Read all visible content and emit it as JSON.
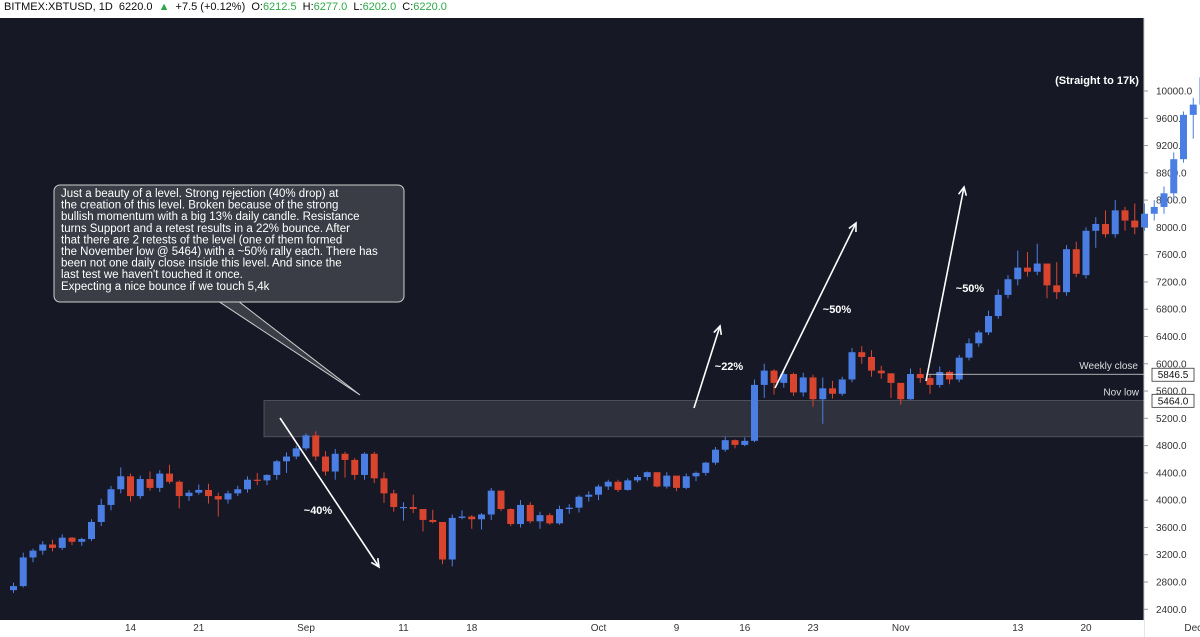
{
  "header": {
    "symbol": "BITMEX:XBTUSD, 1D",
    "last": "6220.0",
    "change_arrow": "▲",
    "change": "+7.5 (+0.12%)",
    "o_label": "O:",
    "o_value": "6212.5",
    "h_label": "H:",
    "h_value": "6277.0",
    "l_label": "L:",
    "l_value": "6202.0",
    "c_label": "C:",
    "c_value": "6220.0"
  },
  "colors": {
    "background": "#161826",
    "up": "#4a7ee3",
    "down": "#d8442e",
    "zone": "#2f313c",
    "text": "#ffffff",
    "axis_text": "#c8c8c8"
  },
  "chart_data": {
    "type": "candlestick",
    "symbol": "BITMEX:XBTUSD",
    "timeframe": "1D",
    "ylim": [
      2400,
      10400
    ],
    "y_ticks": [
      "10000.0",
      "9600.0",
      "9200.0",
      "8800.0",
      "8400.0",
      "8000.0",
      "7600.0",
      "7200.0",
      "6800.0",
      "6400.0",
      "6000.0",
      "5600.0",
      "5200.0",
      "4800.0",
      "4400.0",
      "4000.0",
      "3600.0",
      "3200.0",
      "2800.0",
      "2400.0"
    ],
    "x_ticks": [
      {
        "label": "14",
        "i": 12
      },
      {
        "label": "21",
        "i": 19
      },
      {
        "label": "Sep",
        "i": 30
      },
      {
        "label": "11",
        "i": 40
      },
      {
        "label": "18",
        "i": 47
      },
      {
        "label": "Oct",
        "i": 60
      },
      {
        "label": "9",
        "i": 68
      },
      {
        "label": "16",
        "i": 75
      },
      {
        "label": "23",
        "i": 82
      },
      {
        "label": "Nov",
        "i": 91
      },
      {
        "label": "13",
        "i": 103
      },
      {
        "label": "20",
        "i": 110
      },
      {
        "label": "Dec",
        "i": 121
      }
    ],
    "candles": [
      [
        2680,
        2790,
        2640,
        2740
      ],
      [
        2740,
        3230,
        2720,
        3160
      ],
      [
        3160,
        3290,
        3090,
        3260
      ],
      [
        3260,
        3400,
        3200,
        3350
      ],
      [
        3350,
        3420,
        3250,
        3300
      ],
      [
        3300,
        3500,
        3270,
        3450
      ],
      [
        3450,
        3460,
        3340,
        3390
      ],
      [
        3390,
        3450,
        3330,
        3430
      ],
      [
        3430,
        3720,
        3400,
        3680
      ],
      [
        3680,
        4020,
        3620,
        3930
      ],
      [
        3930,
        4210,
        3850,
        4160
      ],
      [
        4160,
        4480,
        4100,
        4350
      ],
      [
        4350,
        4390,
        3980,
        4060
      ],
      [
        4060,
        4360,
        4020,
        4310
      ],
      [
        4310,
        4420,
        4140,
        4180
      ],
      [
        4180,
        4440,
        4120,
        4390
      ],
      [
        4390,
        4520,
        4240,
        4270
      ],
      [
        4270,
        4290,
        3880,
        4060
      ],
      [
        4060,
        4150,
        3990,
        4110
      ],
      [
        4110,
        4230,
        4080,
        4150
      ],
      [
        4150,
        4240,
        3950,
        4060
      ],
      [
        4060,
        4110,
        3760,
        4010
      ],
      [
        4010,
        4140,
        3950,
        4100
      ],
      [
        4100,
        4210,
        4060,
        4160
      ],
      [
        4160,
        4350,
        4110,
        4300
      ],
      [
        4300,
        4400,
        4220,
        4290
      ],
      [
        4290,
        4380,
        4220,
        4370
      ],
      [
        4370,
        4590,
        4300,
        4570
      ],
      [
        4570,
        4700,
        4400,
        4640
      ],
      [
        4640,
        4800,
        4600,
        4760
      ],
      [
        4760,
        4980,
        4730,
        4950
      ],
      [
        4950,
        5010,
        4580,
        4640
      ],
      [
        4640,
        4720,
        4360,
        4420
      ],
      [
        4420,
        4750,
        4300,
        4680
      ],
      [
        4680,
        4710,
        4330,
        4590
      ],
      [
        4590,
        4620,
        4300,
        4370
      ],
      [
        4370,
        4700,
        4300,
        4680
      ],
      [
        4680,
        4710,
        4250,
        4320
      ],
      [
        4320,
        4410,
        3960,
        4100
      ],
      [
        4100,
        4150,
        3830,
        3900
      ],
      [
        3900,
        3970,
        3700,
        3900
      ],
      [
        3900,
        4080,
        3810,
        3870
      ],
      [
        3870,
        3870,
        3540,
        3710
      ],
      [
        3710,
        3860,
        3660,
        3680
      ],
      [
        3680,
        3680,
        3060,
        3130
      ],
      [
        3130,
        3790,
        3030,
        3740
      ],
      [
        3740,
        3850,
        3720,
        3760
      ],
      [
        3760,
        3780,
        3580,
        3720
      ],
      [
        3720,
        3810,
        3570,
        3790
      ],
      [
        3790,
        4180,
        3710,
        4140
      ],
      [
        4140,
        4120,
        3840,
        3870
      ],
      [
        3870,
        3880,
        3620,
        3650
      ],
      [
        3650,
        4000,
        3600,
        3930
      ],
      [
        3930,
        3970,
        3660,
        3690
      ],
      [
        3690,
        3830,
        3580,
        3780
      ],
      [
        3780,
        3810,
        3640,
        3660
      ],
      [
        3660,
        3920,
        3640,
        3870
      ],
      [
        3870,
        3940,
        3800,
        3890
      ],
      [
        3890,
        4070,
        3820,
        4050
      ],
      [
        4050,
        4130,
        3980,
        4080
      ],
      [
        4080,
        4230,
        4000,
        4200
      ],
      [
        4200,
        4300,
        4150,
        4270
      ],
      [
        4270,
        4300,
        4120,
        4150
      ],
      [
        4150,
        4320,
        4140,
        4290
      ],
      [
        4290,
        4370,
        4260,
        4340
      ],
      [
        4340,
        4420,
        4290,
        4410
      ],
      [
        4410,
        4360,
        4190,
        4200
      ],
      [
        4200,
        4410,
        4170,
        4360
      ],
      [
        4360,
        4300,
        4130,
        4180
      ],
      [
        4180,
        4390,
        4160,
        4350
      ],
      [
        4350,
        4420,
        4280,
        4400
      ],
      [
        4400,
        4560,
        4360,
        4550
      ],
      [
        4550,
        4780,
        4520,
        4740
      ],
      [
        4740,
        4930,
        4710,
        4880
      ],
      [
        4880,
        4890,
        4760,
        4810
      ],
      [
        4810,
        4920,
        4790,
        4870
      ],
      [
        4870,
        5770,
        4850,
        5690
      ],
      [
        5690,
        6000,
        5500,
        5900
      ],
      [
        5900,
        5920,
        5550,
        5720
      ],
      [
        5720,
        5890,
        5650,
        5850
      ],
      [
        5850,
        5870,
        5530,
        5580
      ],
      [
        5580,
        5870,
        5520,
        5800
      ],
      [
        5800,
        5840,
        5370,
        5480
      ],
      [
        5480,
        5800,
        5120,
        5640
      ],
      [
        5640,
        5750,
        5490,
        5560
      ],
      [
        5560,
        5810,
        5530,
        5770
      ],
      [
        5770,
        6230,
        5730,
        6170
      ],
      [
        6170,
        6260,
        6000,
        6100
      ],
      [
        6100,
        6200,
        5810,
        5900
      ],
      [
        5900,
        5970,
        5780,
        5860
      ],
      [
        5860,
        5860,
        5500,
        5720
      ],
      [
        5720,
        5700,
        5400,
        5480
      ],
      [
        5480,
        5930,
        5470,
        5850
      ],
      [
        5850,
        5940,
        5720,
        5790
      ],
      [
        5790,
        5840,
        5560,
        5690
      ],
      [
        5690,
        5960,
        5650,
        5880
      ],
      [
        5880,
        5900,
        5700,
        5770
      ],
      [
        5770,
        6130,
        5730,
        6090
      ],
      [
        6090,
        6370,
        6050,
        6300
      ],
      [
        6300,
        6490,
        6250,
        6460
      ],
      [
        6460,
        6780,
        6420,
        6700
      ],
      [
        6700,
        7090,
        6660,
        7010
      ],
      [
        7010,
        7300,
        6960,
        7240
      ],
      [
        7240,
        7660,
        7150,
        7410
      ],
      [
        7410,
        7640,
        7280,
        7350
      ],
      [
        7350,
        7760,
        7300,
        7470
      ],
      [
        7470,
        7450,
        6960,
        7150
      ],
      [
        7150,
        7490,
        6950,
        7050
      ],
      [
        7050,
        7740,
        7000,
        7680
      ],
      [
        7680,
        7790,
        7270,
        7320
      ]
    ]
  },
  "zone": {
    "low": 4930,
    "high": 5460
  },
  "annotations": {
    "note_text": "Just a beauty of a level. Strong rejection (40% drop) at the creation of this level. Broken because of the strong bullish momentum with a big 13% daily candle. Resistance turns Support and a retest results in a 22% bounce. After that there are 2 retests of the level (one of them formed the November low @ 5464) with a ~50% rally each. There has been not one daily close inside this level. And since the last test we haven't touched it once.",
    "note_text_last": "Expecting a nice bounce if we touch 5,4k",
    "drop_label": "~40%",
    "bounce_label": "~22%",
    "rally1_label": "~50%",
    "rally2_label": "~50%",
    "straight_label": "(Straight to 17k)",
    "weekly_close_label": "Weekly close",
    "weekly_close_value": "5846.5",
    "nov_low_label": "Nov low",
    "nov_low_value": "5464.0"
  }
}
